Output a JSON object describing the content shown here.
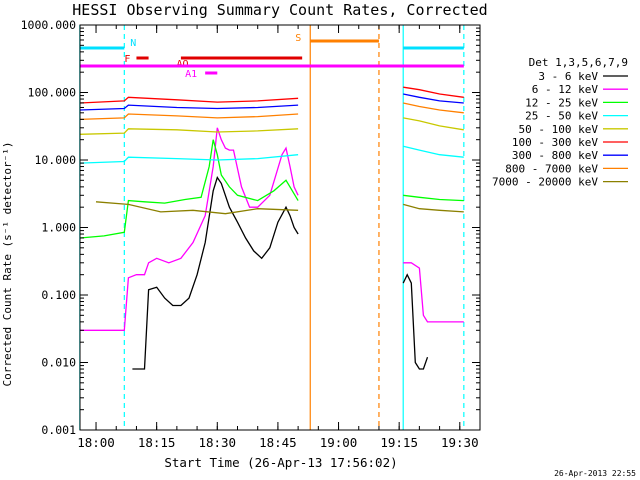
{
  "chart_data": {
    "type": "line",
    "title": "HESSI Observing Summary Count Rates, Corrected",
    "xlabel": "Start Time (26-Apr-13 17:56:02)",
    "ylabel": "Corrected Count Rate (s⁻¹ detector⁻¹)",
    "timestamp": "26-Apr-2013 22:55",
    "y_scale": "log",
    "ylim": [
      0.001,
      1000
    ],
    "xlim": [
      "17:56:02",
      "19:35:00"
    ],
    "x_ticks": [
      "18:00",
      "18:15",
      "18:30",
      "18:45",
      "19:00",
      "19:15",
      "19:30"
    ],
    "y_ticks": [
      "1000.000",
      "100.000",
      "10.000",
      "1.000",
      "0.100",
      "0.010",
      "0.001"
    ],
    "grid": false,
    "legend_title": "Det 1,3,5,6,7,9",
    "legend_placement": "right",
    "series": [
      {
        "name": "3 - 6 keV",
        "color": "#000000",
        "segments": [
          {
            "x": [
              "18:09",
              "18:10",
              "18:11",
              "18:12",
              "18:13",
              "18:15",
              "18:17",
              "18:19",
              "18:21",
              "18:23",
              "18:25",
              "18:27",
              "18:29",
              "18:30",
              "18:31",
              "18:33",
              "18:35",
              "18:37",
              "18:39",
              "18:41",
              "18:43",
              "18:45",
              "18:47",
              "18:48",
              "18:49",
              "18:50"
            ],
            "y": [
              0.008,
              0.008,
              0.008,
              0.008,
              0.12,
              0.13,
              0.09,
              0.07,
              0.07,
              0.09,
              0.2,
              0.6,
              3.5,
              5.5,
              4.5,
              2.0,
              1.2,
              0.7,
              0.45,
              0.35,
              0.5,
              1.2,
              2.0,
              1.5,
              1.0,
              0.8
            ]
          },
          {
            "x": [
              "19:16",
              "19:17",
              "19:18",
              "19:19",
              "19:20",
              "19:21",
              "19:22"
            ],
            "y": [
              0.15,
              0.2,
              0.15,
              0.01,
              0.008,
              0.008,
              0.012
            ]
          }
        ]
      },
      {
        "name": "6 - 12 keV",
        "color": "#ff00ff",
        "segments": [
          {
            "x": [
              "17:56",
              "18:00",
              "18:05",
              "18:07",
              "18:08",
              "18:10",
              "18:12",
              "18:13",
              "18:15",
              "18:18",
              "18:21",
              "18:24",
              "18:27",
              "18:29",
              "18:30",
              "18:31",
              "18:32",
              "18:33",
              "18:34",
              "18:36",
              "18:38",
              "18:40",
              "18:43",
              "18:46",
              "18:47",
              "18:48",
              "18:49",
              "18:50"
            ],
            "y": [
              0.03,
              0.03,
              0.03,
              0.03,
              0.18,
              0.2,
              0.2,
              0.3,
              0.35,
              0.3,
              0.35,
              0.6,
              1.5,
              8,
              30,
              20,
              15,
              14,
              14,
              4,
              2,
              2,
              3,
              12,
              15,
              8,
              4,
              3
            ]
          },
          {
            "x": [
              "19:16",
              "19:18",
              "19:20",
              "19:21",
              "19:22",
              "19:25",
              "19:30",
              "19:31"
            ],
            "y": [
              0.3,
              0.3,
              0.25,
              0.05,
              0.04,
              0.04,
              0.04,
              0.04
            ]
          }
        ]
      },
      {
        "name": "12 - 25 keV",
        "color": "#00ff00",
        "segments": [
          {
            "x": [
              "17:56",
              "18:02",
              "18:07",
              "18:08",
              "18:12",
              "18:17",
              "18:22",
              "18:26",
              "18:28",
              "18:29",
              "18:30",
              "18:31",
              "18:33",
              "18:35",
              "18:40",
              "18:44",
              "18:47",
              "18:48",
              "18:50"
            ],
            "y": [
              0.7,
              0.75,
              0.85,
              2.5,
              2.4,
              2.3,
              2.6,
              2.8,
              8,
              20,
              12,
              6,
              4,
              3,
              2.5,
              3.5,
              5,
              4,
              2.5
            ]
          },
          {
            "x": [
              "19:16",
              "19:20",
              "19:25",
              "19:31"
            ],
            "y": [
              3,
              2.8,
              2.6,
              2.5
            ]
          }
        ]
      },
      {
        "name": "25 - 50 keV",
        "color": "#00ffff",
        "segments": [
          {
            "x": [
              "17:56",
              "18:07",
              "18:08",
              "18:20",
              "18:30",
              "18:40",
              "18:50"
            ],
            "y": [
              9,
              9.5,
              11,
              10.5,
              10,
              10.5,
              12
            ]
          },
          {
            "x": [
              "19:16",
              "19:20",
              "19:25",
              "19:31"
            ],
            "y": [
              16,
              14,
              12,
              11
            ]
          }
        ]
      },
      {
        "name": "50 - 100 keV",
        "color": "#c8c800",
        "segments": [
          {
            "x": [
              "17:56",
              "18:07",
              "18:08",
              "18:20",
              "18:30",
              "18:40",
              "18:50"
            ],
            "y": [
              24,
              25,
              29,
              28,
              26,
              27,
              29
            ]
          },
          {
            "x": [
              "19:16",
              "19:20",
              "19:25",
              "19:31"
            ],
            "y": [
              42,
              38,
              32,
              28
            ]
          }
        ]
      },
      {
        "name": "100 - 300 keV",
        "color": "#ff0000",
        "segments": [
          {
            "x": [
              "17:56",
              "18:07",
              "18:08",
              "18:20",
              "18:30",
              "18:40",
              "18:50"
            ],
            "y": [
              70,
              75,
              85,
              78,
              72,
              75,
              82
            ]
          },
          {
            "x": [
              "19:16",
              "19:20",
              "19:25",
              "19:31"
            ],
            "y": [
              120,
              110,
              95,
              85
            ]
          }
        ]
      },
      {
        "name": "300 - 800 keV",
        "color": "#0000ff",
        "segments": [
          {
            "x": [
              "17:56",
              "18:07",
              "18:08",
              "18:20",
              "18:30",
              "18:40",
              "18:50"
            ],
            "y": [
              55,
              58,
              65,
              60,
              58,
              60,
              65
            ]
          },
          {
            "x": [
              "19:16",
              "19:20",
              "19:25",
              "19:31"
            ],
            "y": [
              95,
              85,
              75,
              70
            ]
          }
        ]
      },
      {
        "name": "800 - 7000 keV",
        "color": "#ff8000",
        "segments": [
          {
            "x": [
              "17:56",
              "18:07",
              "18:08",
              "18:20",
              "18:30",
              "18:40",
              "18:50"
            ],
            "y": [
              40,
              42,
              48,
              45,
              42,
              44,
              48
            ]
          },
          {
            "x": [
              "19:16",
              "19:20",
              "19:25",
              "19:31"
            ],
            "y": [
              70,
              62,
              55,
              50
            ]
          }
        ]
      },
      {
        "name": "7000 - 20000 keV",
        "color": "#8b8000",
        "segments": [
          {
            "x": [
              "18:00",
              "18:08",
              "18:16",
              "18:24",
              "18:32",
              "18:40",
              "18:50"
            ],
            "y": [
              2.4,
              2.2,
              1.7,
              1.8,
              1.6,
              1.9,
              1.8
            ]
          },
          {
            "x": [
              "19:16",
              "19:20",
              "19:25",
              "19:31"
            ],
            "y": [
              2.2,
              1.9,
              1.8,
              1.7
            ]
          }
        ]
      }
    ],
    "flag_bars": [
      {
        "label": "N",
        "color": "#00e0ff",
        "start": "17:56",
        "end": "18:07"
      },
      {
        "label": "",
        "color": "#00e0ff",
        "start": "19:16",
        "end": "19:31"
      },
      {
        "label": "F",
        "color": "#e00000",
        "start": "18:10",
        "end": "18:13"
      },
      {
        "label": "AO",
        "color": "#e00000",
        "start": "18:21",
        "end": "18:51"
      },
      {
        "label": "A1",
        "color": "#ff00ff",
        "start": "18:27",
        "end": "18:30"
      },
      {
        "label": "S",
        "color": "#ff8000",
        "start": "18:53",
        "end": "19:10"
      },
      {
        "label": "",
        "color": "#ff00ff",
        "start": "17:56",
        "end": "19:31"
      }
    ],
    "vertical_markers": [
      {
        "time": "17:56",
        "color": "#00ffff",
        "style": "solid"
      },
      {
        "time": "18:07",
        "color": "#00ffff",
        "style": "dashed"
      },
      {
        "time": "18:53",
        "color": "#ff8000",
        "style": "solid"
      },
      {
        "time": "19:10",
        "color": "#ff8000",
        "style": "dashed"
      },
      {
        "time": "19:16",
        "color": "#00ffff",
        "style": "solid"
      },
      {
        "time": "19:31",
        "color": "#00ffff",
        "style": "dashed"
      }
    ],
    "colors": {
      "axis": "#000000",
      "background": "#ffffff"
    }
  }
}
